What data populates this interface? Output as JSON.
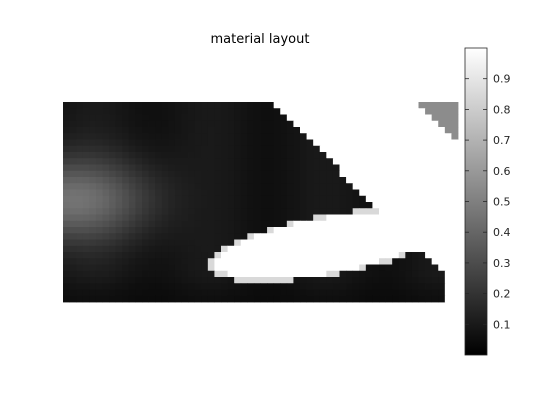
{
  "chart_data": {
    "type": "heatmap",
    "title": "material layout",
    "colormap": "gray",
    "clim": [
      0,
      1
    ],
    "grid": false,
    "legend_placement": "right",
    "colorbar": {
      "ticks": [
        0.1,
        0.2,
        0.3,
        0.4,
        0.5,
        0.6,
        0.7,
        0.8,
        0.9
      ],
      "tick_labels": [
        "0.1",
        "0.2",
        "0.3",
        "0.4",
        "0.5",
        "0.6",
        "0.7",
        "0.8",
        "0.9"
      ]
    },
    "grid_size": {
      "cols": 60,
      "rows": 32
    },
    "regions": {
      "background_value": 1.0,
      "main_body_density": 0.08,
      "left_glow_peak": 0.45,
      "void_value": 1.0,
      "corner_patch_value": 0.55
    }
  }
}
